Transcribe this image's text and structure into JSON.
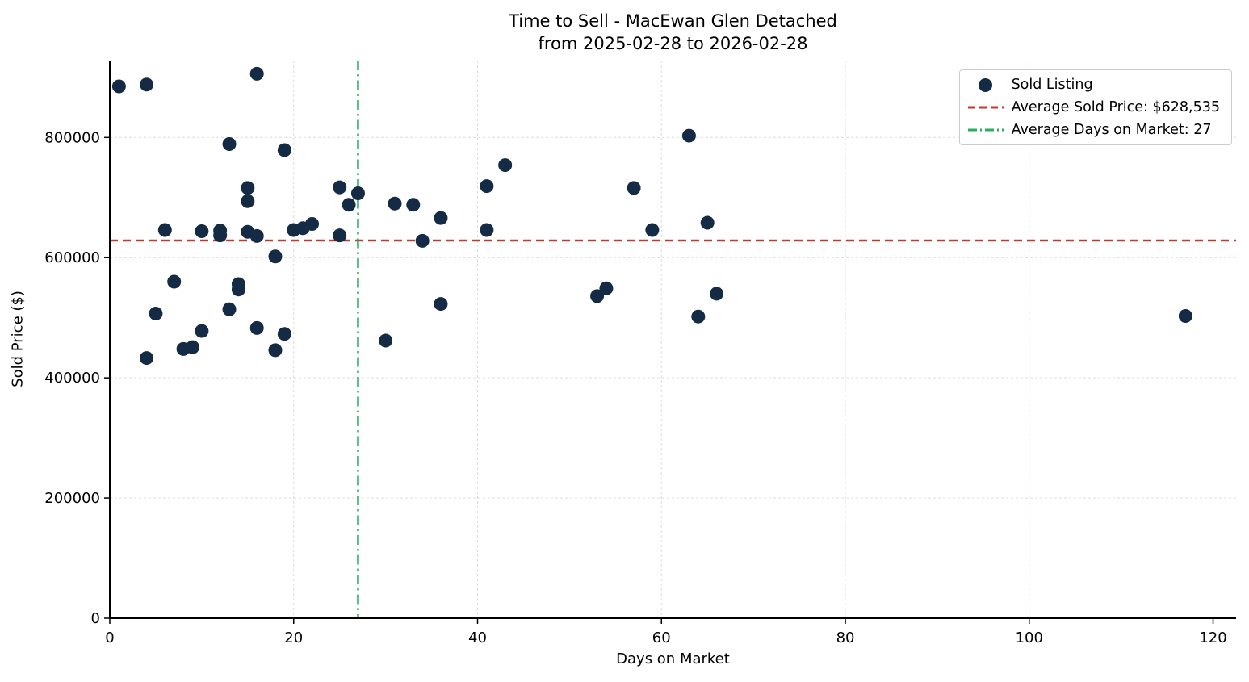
{
  "chart_data": {
    "type": "scatter",
    "title": "Time to Sell - MacEwan Glen Detached",
    "subtitle": "from 2025-02-28 to 2026-02-28",
    "xlabel": "Days on Market",
    "ylabel": "Sold Price ($)",
    "xlim": [
      0,
      122.5
    ],
    "ylim": [
      0,
      928000
    ],
    "xticks": [
      0,
      20,
      40,
      60,
      80,
      100,
      120
    ],
    "yticks": [
      0,
      200000,
      400000,
      600000,
      800000
    ],
    "grid": true,
    "legend_position": "upper right",
    "avg_price": 628535,
    "avg_days": 27,
    "colors": {
      "point": "#152a45",
      "avg_price": "#c0392b",
      "avg_days": "#27ae60",
      "grid": "#dcdcdc",
      "axis": "#000000"
    },
    "legend": [
      {
        "label": "Sold Listing",
        "marker": "dot"
      },
      {
        "label": "Average Sold Price: $628,535",
        "marker": "dashed-line"
      },
      {
        "label": "Average Days on Market: 27",
        "marker": "dashdot-line"
      }
    ],
    "points": [
      [
        1,
        885000
      ],
      [
        4,
        888000
      ],
      [
        4,
        433000
      ],
      [
        5,
        507000
      ],
      [
        6,
        646000
      ],
      [
        7,
        560000
      ],
      [
        8,
        448000
      ],
      [
        9,
        451000
      ],
      [
        10,
        644000
      ],
      [
        10,
        478000
      ],
      [
        12,
        645000
      ],
      [
        12,
        637000
      ],
      [
        13,
        789000
      ],
      [
        13,
        514000
      ],
      [
        14,
        556000
      ],
      [
        14,
        547000
      ],
      [
        15,
        716000
      ],
      [
        15,
        694000
      ],
      [
        15,
        643000
      ],
      [
        16,
        906000
      ],
      [
        16,
        636000
      ],
      [
        16,
        483000
      ],
      [
        18,
        602000
      ],
      [
        18,
        446000
      ],
      [
        19,
        779000
      ],
      [
        19,
        473000
      ],
      [
        20,
        646000
      ],
      [
        21,
        649000
      ],
      [
        22,
        656000
      ],
      [
        25,
        717000
      ],
      [
        25,
        637000
      ],
      [
        26,
        688000
      ],
      [
        27,
        707000
      ],
      [
        30,
        462000
      ],
      [
        31,
        690000
      ],
      [
        33,
        688000
      ],
      [
        34,
        628000
      ],
      [
        36,
        666000
      ],
      [
        36,
        523000
      ],
      [
        41,
        719000
      ],
      [
        41,
        646000
      ],
      [
        43,
        754000
      ],
      [
        53,
        536000
      ],
      [
        54,
        549000
      ],
      [
        57,
        716000
      ],
      [
        59,
        646000
      ],
      [
        63,
        803000
      ],
      [
        64,
        502000
      ],
      [
        65,
        658000
      ],
      [
        66,
        540000
      ],
      [
        117,
        503000
      ]
    ]
  }
}
